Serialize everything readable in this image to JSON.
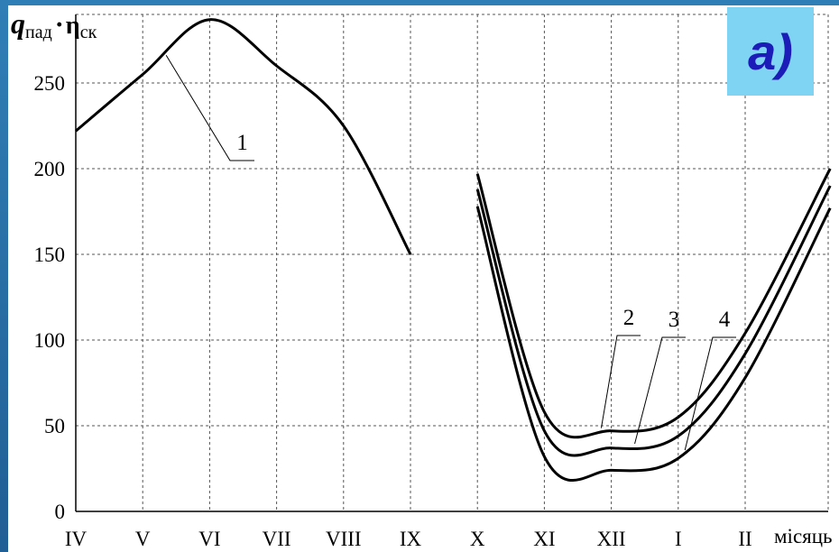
{
  "chart_data": {
    "type": "line",
    "title": "",
    "panel_label": "a)",
    "ylabel": {
      "q_symbol": "q",
      "q_subscript": "пад",
      "dot": "·",
      "eta_symbol": "η",
      "eta_subscript": "ск"
    },
    "xlabel": "місяць",
    "categories": [
      "IV",
      "V",
      "VI",
      "VII",
      "VIII",
      "IX",
      "X",
      "XI",
      "XII",
      "I",
      "II"
    ],
    "ylim": [
      0,
      290
    ],
    "yticks": [
      {
        "value": 0,
        "label": "0"
      },
      {
        "value": 50,
        "label": "50"
      },
      {
        "value": 100,
        "label": "100"
      },
      {
        "value": 150,
        "label": "150"
      },
      {
        "value": 200,
        "label": "200"
      },
      {
        "value": 250,
        "label": "250"
      }
    ],
    "grid": "dashed",
    "series": [
      {
        "name": "1",
        "x": [
          "IV",
          "V",
          "VI",
          "VII",
          "VIII",
          "IX"
        ],
        "values": [
          222,
          255,
          287,
          260,
          225,
          150
        ]
      },
      {
        "name": "2",
        "x": [
          "X",
          "XI",
          "XII",
          "I",
          "II",
          "II+"
        ],
        "values": [
          197,
          58,
          47,
          55,
          104,
          200
        ]
      },
      {
        "name": "3",
        "x": [
          "X",
          "XI",
          "XII",
          "I",
          "II",
          "II+"
        ],
        "values": [
          188,
          47,
          37,
          44,
          92,
          190
        ]
      },
      {
        "name": "4",
        "x": [
          "X",
          "XI",
          "XII",
          "I",
          "II",
          "II+"
        ],
        "values": [
          178,
          32,
          24,
          31,
          78,
          177
        ]
      }
    ]
  }
}
